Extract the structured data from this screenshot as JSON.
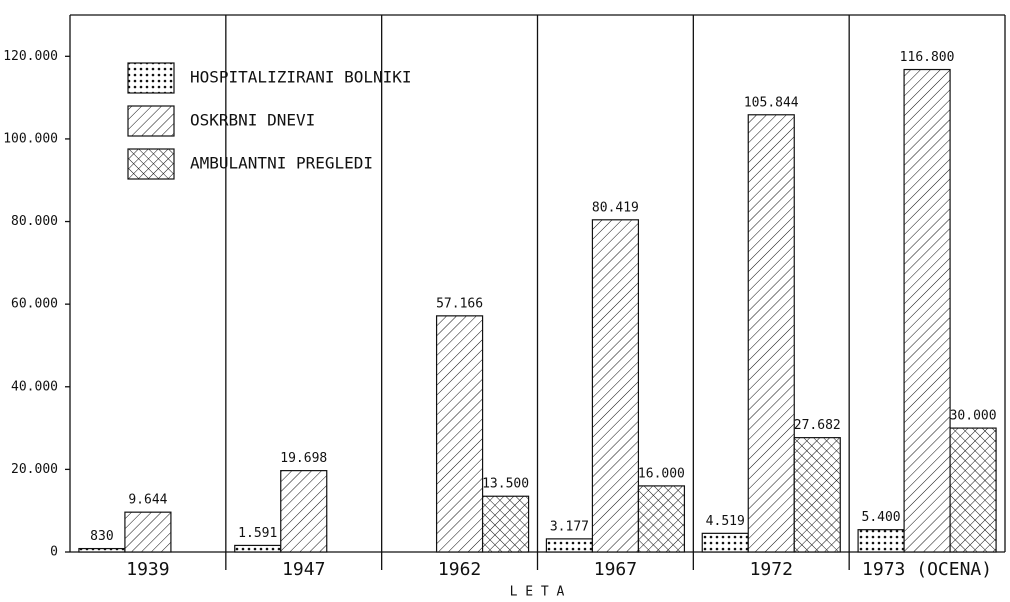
{
  "chart_data": {
    "type": "bar",
    "categories": [
      "1939",
      "1947",
      "1962",
      "1967",
      "1972",
      "1973 (OCENA)"
    ],
    "series": [
      {
        "name": "HOSPITALIZIRANI BOLNIKI",
        "color": "#111111",
        "pattern": "dots",
        "values": [
          830,
          1591,
          null,
          3177,
          4519,
          5400
        ],
        "value_labels": [
          "830",
          "1.591",
          null,
          "3.177",
          "4.519",
          "5.400"
        ]
      },
      {
        "name": "OSKRBNI DNEVI",
        "color": "#111111",
        "pattern": "hatch",
        "values": [
          9644,
          19698,
          57166,
          80419,
          105844,
          116800
        ],
        "value_labels": [
          "9.644",
          "19.698",
          "57.166",
          "80.419",
          "105.844",
          "116.800"
        ]
      },
      {
        "name": "AMBULANTNI PREGLEDI",
        "color": "#111111",
        "pattern": "crosshatch",
        "values": [
          null,
          null,
          13500,
          16000,
          27682,
          30000
        ],
        "value_labels": [
          null,
          null,
          "13.500",
          "16.000",
          "27.682",
          "30.000"
        ]
      }
    ],
    "x_label": "L E T A",
    "ylim": [
      0,
      130000
    ],
    "yticks": [
      0,
      {
        "value": 20000,
        "label": "20.000"
      },
      {
        "value": 40000,
        "label": "40.000"
      },
      {
        "value": 60000,
        "label": "60.000"
      },
      {
        "value": 80000,
        "label": "80.000"
      },
      {
        "value": 100000,
        "label": "100.000"
      },
      {
        "value": 120000,
        "label": "120.000"
      }
    ],
    "legend": "upper left"
  }
}
